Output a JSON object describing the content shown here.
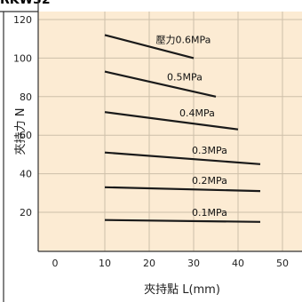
{
  "header": {
    "partial_title": "RKW32"
  },
  "chart_data": {
    "type": "line",
    "xlabel": "夾持點 L(mm)",
    "ylabel": "夾持力 N",
    "xlim": [
      0,
      55
    ],
    "ylim": [
      0,
      125
    ],
    "x_ticks": [
      0,
      10,
      20,
      30,
      40,
      50
    ],
    "y_ticks": [
      20,
      40,
      60,
      80,
      100,
      120
    ],
    "grid": true,
    "background_color": "#fcebd3",
    "grid_color": "#cdbfa9",
    "line_color": "#1a1a1a",
    "series": [
      {
        "name": "壓力0.6MPa",
        "x": [
          10,
          30
        ],
        "y": [
          112,
          100
        ]
      },
      {
        "name": "0.5MPa",
        "x": [
          10,
          35
        ],
        "y": [
          93,
          80
        ]
      },
      {
        "name": "0.4MPa",
        "x": [
          10,
          40
        ],
        "y": [
          72,
          63
        ]
      },
      {
        "name": "0.3MPa",
        "x": [
          10,
          45
        ],
        "y": [
          51,
          45
        ]
      },
      {
        "name": "0.2MPa",
        "x": [
          10,
          45
        ],
        "y": [
          33,
          31
        ]
      },
      {
        "name": "0.1MPa",
        "x": [
          10,
          45
        ],
        "y": [
          16,
          15
        ]
      }
    ]
  }
}
